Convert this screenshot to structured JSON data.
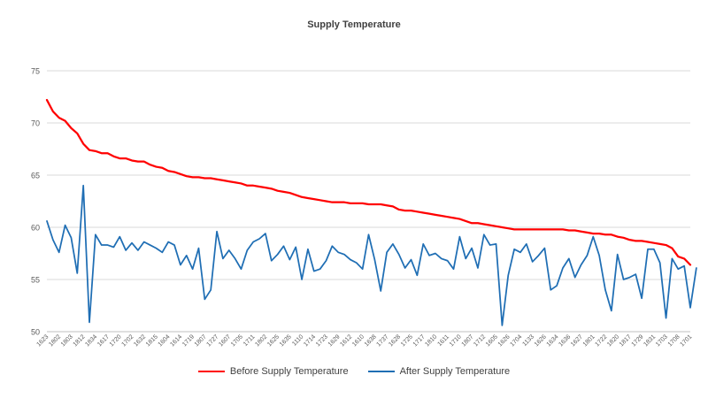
{
  "chart_data": {
    "type": "line",
    "title": "Supply Temperature",
    "xlabel": "",
    "ylabel": "",
    "ylim": [
      50,
      75
    ],
    "yticks": [
      50,
      55,
      60,
      65,
      70,
      75
    ],
    "grid": true,
    "legend_position": "bottom",
    "x_tick_labels": [
      "1623",
      "1802",
      "1803",
      "1812",
      "1834",
      "1617",
      "1720",
      "1702",
      "1632",
      "1815",
      "1604",
      "1614",
      "1719",
      "1807",
      "1727",
      "1607",
      "1705",
      "1711",
      "1802",
      "1625",
      "1635",
      "1110",
      "1714",
      "1723",
      "1629",
      "1612",
      "1610",
      "1638",
      "1737",
      "1628",
      "1725",
      "1717",
      "1810",
      "1611",
      "1710",
      "1807",
      "1712",
      "1605",
      "1626",
      "1704",
      "1133",
      "1626",
      "1634",
      "1636",
      "1627",
      "1801",
      "1722",
      "1820",
      "1817",
      "1729",
      "1831",
      "1703",
      "1708",
      "1701"
    ],
    "series": [
      {
        "name": "Before Supply Temperature",
        "color": "#ff0000",
        "values": [
          72.2,
          71.1,
          70.5,
          70.2,
          69.5,
          69.0,
          68.0,
          67.4,
          67.3,
          67.1,
          67.1,
          66.8,
          66.6,
          66.6,
          66.4,
          66.3,
          66.3,
          66.0,
          65.8,
          65.7,
          65.4,
          65.3,
          65.1,
          64.9,
          64.8,
          64.8,
          64.7,
          64.7,
          64.6,
          64.5,
          64.4,
          64.3,
          64.2,
          64.0,
          64.0,
          63.9,
          63.8,
          63.7,
          63.5,
          63.4,
          63.3,
          63.1,
          62.9,
          62.8,
          62.7,
          62.6,
          62.5,
          62.4,
          62.4,
          62.4,
          62.3,
          62.3,
          62.3,
          62.2,
          62.2,
          62.2,
          62.1,
          62.0,
          61.7,
          61.6,
          61.6,
          61.5,
          61.4,
          61.3,
          61.2,
          61.1,
          61.0,
          60.9,
          60.8,
          60.6,
          60.4,
          60.4,
          60.3,
          60.2,
          60.1,
          60.0,
          59.9,
          59.8,
          59.8,
          59.8,
          59.8,
          59.8,
          59.8,
          59.8,
          59.8,
          59.8,
          59.7,
          59.7,
          59.6,
          59.5,
          59.4,
          59.4,
          59.3,
          59.3,
          59.1,
          59.0,
          58.8,
          58.7,
          58.7,
          58.6,
          58.5,
          58.4,
          58.3,
          58.0,
          57.2,
          57.0,
          56.4
        ],
        "line_width": 2.25
      },
      {
        "name": "After Supply Temperature",
        "color": "#1f6eb4",
        "values": [
          60.6,
          58.8,
          57.6,
          60.2,
          59.0,
          55.6,
          64.0,
          50.9,
          59.3,
          58.3,
          58.3,
          58.1,
          59.1,
          57.8,
          58.5,
          57.8,
          58.6,
          58.3,
          58.0,
          57.6,
          58.6,
          58.3,
          56.4,
          57.3,
          56.0,
          58.0,
          53.1,
          54.0,
          59.6,
          57.0,
          57.8,
          57.0,
          56.0,
          57.8,
          58.6,
          58.9,
          59.4,
          56.8,
          57.4,
          58.2,
          56.9,
          58.1,
          55.0,
          57.9,
          55.8,
          56.0,
          56.8,
          58.2,
          57.6,
          57.4,
          56.9,
          56.6,
          56.0,
          59.3,
          56.9,
          53.9,
          57.6,
          58.4,
          57.4,
          56.1,
          56.9,
          55.4,
          58.4,
          57.3,
          57.5,
          57.0,
          56.8,
          56.0,
          59.1,
          57.0,
          58.0,
          56.1,
          59.3,
          58.3,
          58.4,
          50.6,
          55.4,
          57.9,
          57.6,
          58.4,
          56.7,
          57.3,
          58.0,
          54.0,
          54.4,
          56.1,
          57.0,
          55.2,
          56.4,
          57.3,
          59.1,
          57.3,
          54.0,
          52.0,
          57.4,
          55.0,
          55.2,
          55.5,
          53.2,
          57.9,
          57.9,
          56.6,
          51.3,
          57.0,
          56.0,
          56.3,
          52.3,
          56.1
        ],
        "line_width": 1.75
      }
    ]
  }
}
